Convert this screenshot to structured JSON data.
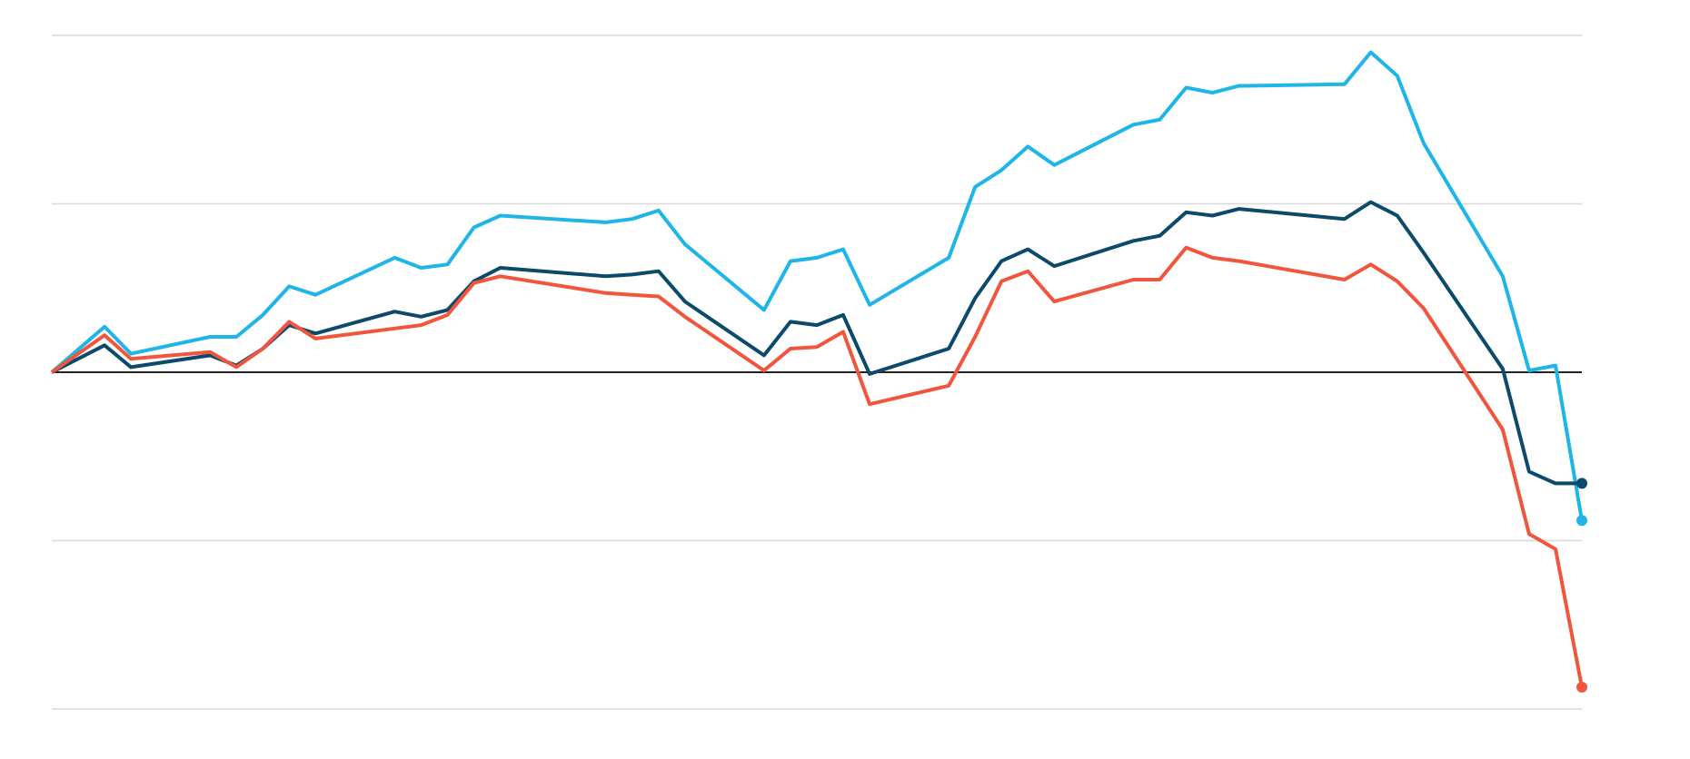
{
  "chart_data": {
    "type": "line",
    "x": [
      0,
      2,
      3,
      6,
      7,
      8,
      9,
      10,
      13,
      14,
      15,
      16,
      17,
      21,
      22,
      23,
      24,
      27,
      28,
      29,
      30,
      31,
      34,
      35,
      36,
      37,
      38,
      41,
      42,
      43,
      44,
      45,
      49,
      50,
      51,
      52,
      55,
      56,
      57,
      58
    ],
    "xlim": [
      0,
      58
    ],
    "ylim": [
      -2,
      2
    ],
    "yticks": [
      -2,
      -1,
      0,
      1,
      2
    ],
    "grid": true,
    "zero_line": true,
    "end_markers": true,
    "series": [
      {
        "color": "#1fb5e8",
        "values": [
          0,
          0.27,
          0.11,
          0.21,
          0.21,
          0.34,
          0.51,
          0.46,
          0.68,
          0.62,
          0.64,
          0.86,
          0.93,
          0.89,
          0.91,
          0.96,
          0.76,
          0.37,
          0.66,
          0.68,
          0.73,
          0.4,
          0.68,
          1.1,
          1.2,
          1.34,
          1.23,
          1.47,
          1.5,
          1.69,
          1.66,
          1.7,
          1.71,
          1.9,
          1.76,
          1.36,
          0.57,
          0.01,
          0.04,
          -0.88
        ]
      },
      {
        "color": "#0b4a6b",
        "values": [
          0,
          0.16,
          0.03,
          0.1,
          0.04,
          0.14,
          0.28,
          0.23,
          0.36,
          0.33,
          0.37,
          0.54,
          0.62,
          0.57,
          0.58,
          0.6,
          0.42,
          0.1,
          0.3,
          0.28,
          0.34,
          -0.01,
          0.14,
          0.44,
          0.66,
          0.73,
          0.63,
          0.78,
          0.81,
          0.95,
          0.93,
          0.97,
          0.91,
          1.01,
          0.93,
          0.71,
          0.02,
          -0.59,
          -0.66,
          -0.66
        ]
      },
      {
        "color": "#f2553d",
        "values": [
          0,
          0.22,
          0.08,
          0.12,
          0.03,
          0.14,
          0.3,
          0.2,
          0.26,
          0.28,
          0.34,
          0.53,
          0.57,
          0.47,
          0.46,
          0.45,
          0.33,
          0.01,
          0.14,
          0.15,
          0.24,
          -0.19,
          -0.08,
          0.21,
          0.54,
          0.6,
          0.42,
          0.55,
          0.55,
          0.74,
          0.68,
          0.66,
          0.55,
          0.64,
          0.54,
          0.38,
          -0.34,
          -0.96,
          -1.05,
          -1.87
        ]
      }
    ]
  }
}
